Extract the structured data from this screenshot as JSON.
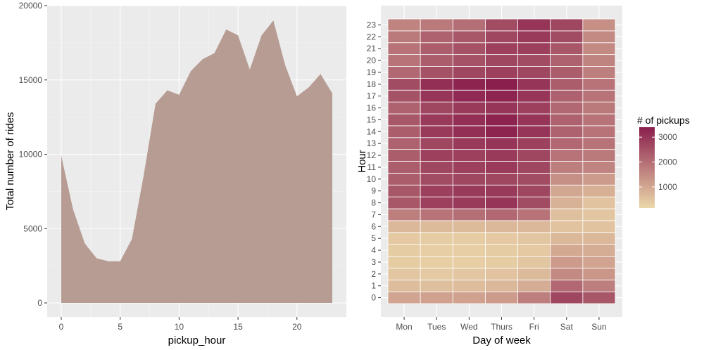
{
  "chart_data": [
    {
      "type": "area",
      "xlabel": "pickup_hour",
      "ylabel": "Total number of rides",
      "xlim": [
        0,
        23
      ],
      "ylim": [
        0,
        20000
      ],
      "x_ticks": [
        "0",
        "5",
        "10",
        "15",
        "20"
      ],
      "y_ticks": [
        "0",
        "5000",
        "10000",
        "15000",
        "20000"
      ],
      "grid": true,
      "fill_color": "#b79c93",
      "x": [
        0,
        1,
        2,
        3,
        4,
        5,
        6,
        7,
        8,
        9,
        10,
        11,
        12,
        13,
        14,
        15,
        16,
        17,
        18,
        19,
        20,
        21,
        22,
        23
      ],
      "values": [
        9900,
        6300,
        4000,
        3000,
        2800,
        2800,
        4300,
        8600,
        13400,
        14300,
        14000,
        15600,
        16400,
        16800,
        18400,
        18000,
        15700,
        18000,
        19000,
        16000,
        13900,
        14500,
        15400,
        14100
      ]
    },
    {
      "type": "heatmap",
      "xlabel": "Day of week",
      "ylabel": "Hour",
      "x_categories": [
        "Mon",
        "Tues",
        "Wed",
        "Thurs",
        "Fri",
        "Sat",
        "Sun"
      ],
      "y_categories": [
        "0",
        "1",
        "2",
        "3",
        "4",
        "5",
        "6",
        "7",
        "8",
        "9",
        "10",
        "11",
        "12",
        "13",
        "14",
        "15",
        "16",
        "17",
        "18",
        "19",
        "20",
        "21",
        "22",
        "23"
      ],
      "legend_title": "# of pickups",
      "legend_ticks": [
        "1000",
        "2000",
        "3000"
      ],
      "legend_position": "right",
      "color_low": "#ebd7a9",
      "color_high": "#8a1e4d",
      "value_range": [
        150,
        3400
      ],
      "values": [
        [
          1050,
          1100,
          1100,
          1200,
          1700,
          2700,
          2400
        ],
        [
          600,
          550,
          600,
          700,
          900,
          2100,
          1700
        ],
        [
          450,
          400,
          450,
          500,
          650,
          1500,
          1300
        ],
        [
          350,
          300,
          300,
          350,
          450,
          1200,
          1050
        ],
        [
          350,
          300,
          300,
          350,
          400,
          950,
          900
        ],
        [
          400,
          350,
          350,
          400,
          450,
          700,
          700
        ],
        [
          700,
          650,
          650,
          700,
          700,
          500,
          500
        ],
        [
          1700,
          1900,
          2000,
          2100,
          1900,
          550,
          450
        ],
        [
          2400,
          2800,
          2900,
          3000,
          2600,
          800,
          500
        ],
        [
          2400,
          2800,
          2900,
          2900,
          2700,
          1000,
          850
        ],
        [
          2300,
          2600,
          2700,
          2700,
          2600,
          1400,
          1200
        ],
        [
          2300,
          2700,
          2800,
          2900,
          2700,
          1700,
          1600
        ],
        [
          2300,
          2800,
          2800,
          2900,
          2700,
          1900,
          1800
        ],
        [
          2200,
          2700,
          2900,
          3000,
          2800,
          2100,
          1900
        ],
        [
          2300,
          2900,
          3100,
          3300,
          3000,
          2200,
          1900
        ],
        [
          2400,
          2900,
          3100,
          3300,
          3000,
          2200,
          1900
        ],
        [
          2200,
          2700,
          2900,
          3000,
          2800,
          2100,
          1800
        ],
        [
          2500,
          3000,
          3200,
          3300,
          3000,
          2200,
          1900
        ],
        [
          2600,
          3100,
          3300,
          3400,
          3000,
          2300,
          1900
        ],
        [
          2100,
          2500,
          2700,
          2800,
          2700,
          2300,
          1700
        ],
        [
          1900,
          2300,
          2500,
          2700,
          2600,
          2200,
          1600
        ],
        [
          1900,
          2300,
          2500,
          2800,
          2800,
          2400,
          1500
        ],
        [
          1800,
          2200,
          2400,
          2700,
          2900,
          2600,
          1500
        ],
        [
          1600,
          1800,
          2000,
          2600,
          3000,
          2700,
          1400
        ]
      ]
    }
  ]
}
